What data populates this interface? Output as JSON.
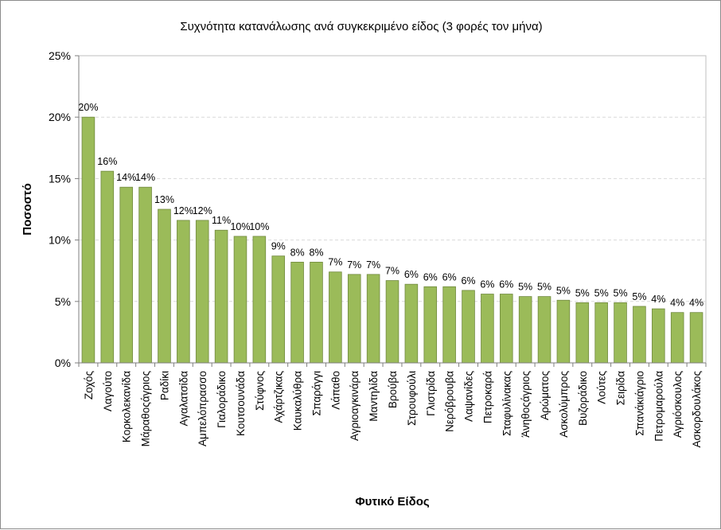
{
  "chart_data": {
    "type": "bar",
    "title": "Συχνότητα κατανάλωσης ανά συγκεκριμένο είδος (3 φορές τον μήνα)",
    "xlabel": "Φυτικό Είδος",
    "ylabel": "Ποσοστό",
    "ylim": [
      0,
      25
    ],
    "yticks": [
      "0%",
      "5%",
      "10%",
      "15%",
      "20%",
      "25%"
    ],
    "grid": true,
    "legend": "none",
    "colors": {
      "bar": "#9bbb59",
      "bar_edge": "#71893f",
      "plot_bg": "#ffffff",
      "grid": "#d9d9d9"
    },
    "categories": [
      "Ζοχός",
      "Λαγούτο",
      "Κορκολεκανίδα",
      "Μάραθοςάγριος",
      "Ραδίκι",
      "Αγαλατσίδα",
      "Αμπελόπρασσο",
      "Γιαλοράδικο",
      "Κουτσουνάδα",
      "Στύφνος",
      "Αχάρτζικας",
      "Καυκαλύθρα",
      "Σπαράγγι",
      "Λάπαθο",
      "Αγριοαγκινάρα",
      "Μαντηλίδα",
      "Βρούβα",
      "Στρουφούλι",
      "Γλιστρίδα",
      "Νερόβρουβα",
      "Λαψανίδες",
      "Πετροκαρά",
      "Σταφυλίνακας",
      "Άνηθοςάγριος",
      "Αρώματος",
      "Ασκολύμπρος",
      "Βυζοράδικο",
      "Λούτες",
      "Σειρίδα",
      "Σπανάκιάγριο",
      "Πετρομαρούλα",
      "Αγριόσκουλος",
      "Ασκορδουλάκος"
    ],
    "values": [
      20,
      15.6,
      14.3,
      14.3,
      12.5,
      11.6,
      11.6,
      10.8,
      10.3,
      10.3,
      8.7,
      8.2,
      8.2,
      7.4,
      7.2,
      7.2,
      6.7,
      6.4,
      6.2,
      6.2,
      5.9,
      5.6,
      5.6,
      5.4,
      5.4,
      5.1,
      4.9,
      4.9,
      4.9,
      4.6,
      4.4,
      4.1,
      4.1
    ],
    "data_labels": [
      "20%",
      "16%",
      "14%",
      "14%",
      "13%",
      "12%",
      "12%",
      "11%",
      "10%",
      "10%",
      "9%",
      "8%",
      "8%",
      "7%",
      "7%",
      "7%",
      "7%",
      "6%",
      "6%",
      "6%",
      "6%",
      "6%",
      "6%",
      "5%",
      "5%",
      "5%",
      "5%",
      "5%",
      "5%",
      "5%",
      "4%",
      "4%",
      "4%"
    ]
  }
}
